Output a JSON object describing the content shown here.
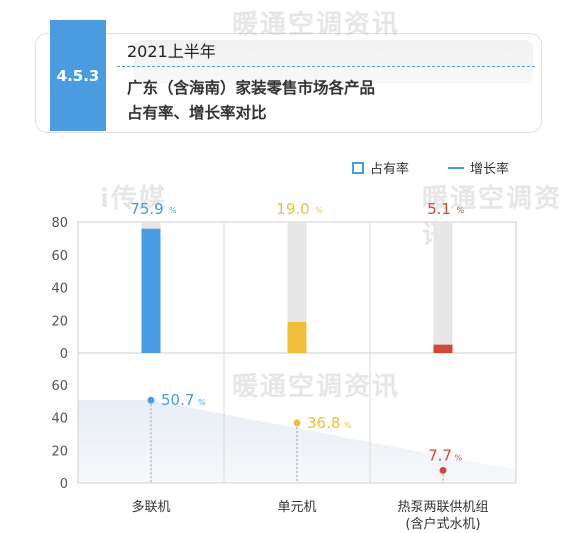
{
  "header": {
    "section": "4.5.3",
    "subtitle": "2021上半年",
    "title_line1": "广东（含海南）家装零售市场各产品",
    "title_line2": "占有率、增长率对比"
  },
  "watermarks": [
    "暖通空调资讯",
    "暖通空调资讯",
    "暖通空调资讯",
    "i传媒"
  ],
  "legend": {
    "share_label": "占有率",
    "growth_label": "增长率"
  },
  "colors": {
    "accent": "#4a9be0",
    "series_colors": [
      "#4a9be0",
      "#f0bf3c",
      "#d2473a"
    ],
    "bar_background": "#e6e6e6"
  },
  "chart_data": [
    {
      "type": "bar",
      "categories": [
        "多联机",
        "单元机",
        "热泵两联供机组\n(含户式水机)"
      ],
      "series": [
        {
          "name": "占有率",
          "values": [
            75.9,
            19.0,
            5.1
          ]
        }
      ],
      "value_labels": [
        "75.9",
        "19.0",
        "5.1"
      ],
      "unit": "%",
      "ylim": [
        0,
        80
      ],
      "yticks": [
        "0",
        "20",
        "40",
        "60",
        "80"
      ],
      "grid": true
    },
    {
      "type": "scatter",
      "categories": [
        "多联机",
        "单元机",
        "热泵两联供机组\n(含户式水机)"
      ],
      "series": [
        {
          "name": "增长率",
          "values": [
            50.7,
            36.8,
            7.7
          ]
        }
      ],
      "value_labels": [
        "50.7",
        "36.8",
        "7.7"
      ],
      "unit": "%",
      "ylim": [
        0,
        60
      ],
      "yticks": [
        "0",
        "20",
        "40",
        "60"
      ],
      "grid": true
    }
  ]
}
